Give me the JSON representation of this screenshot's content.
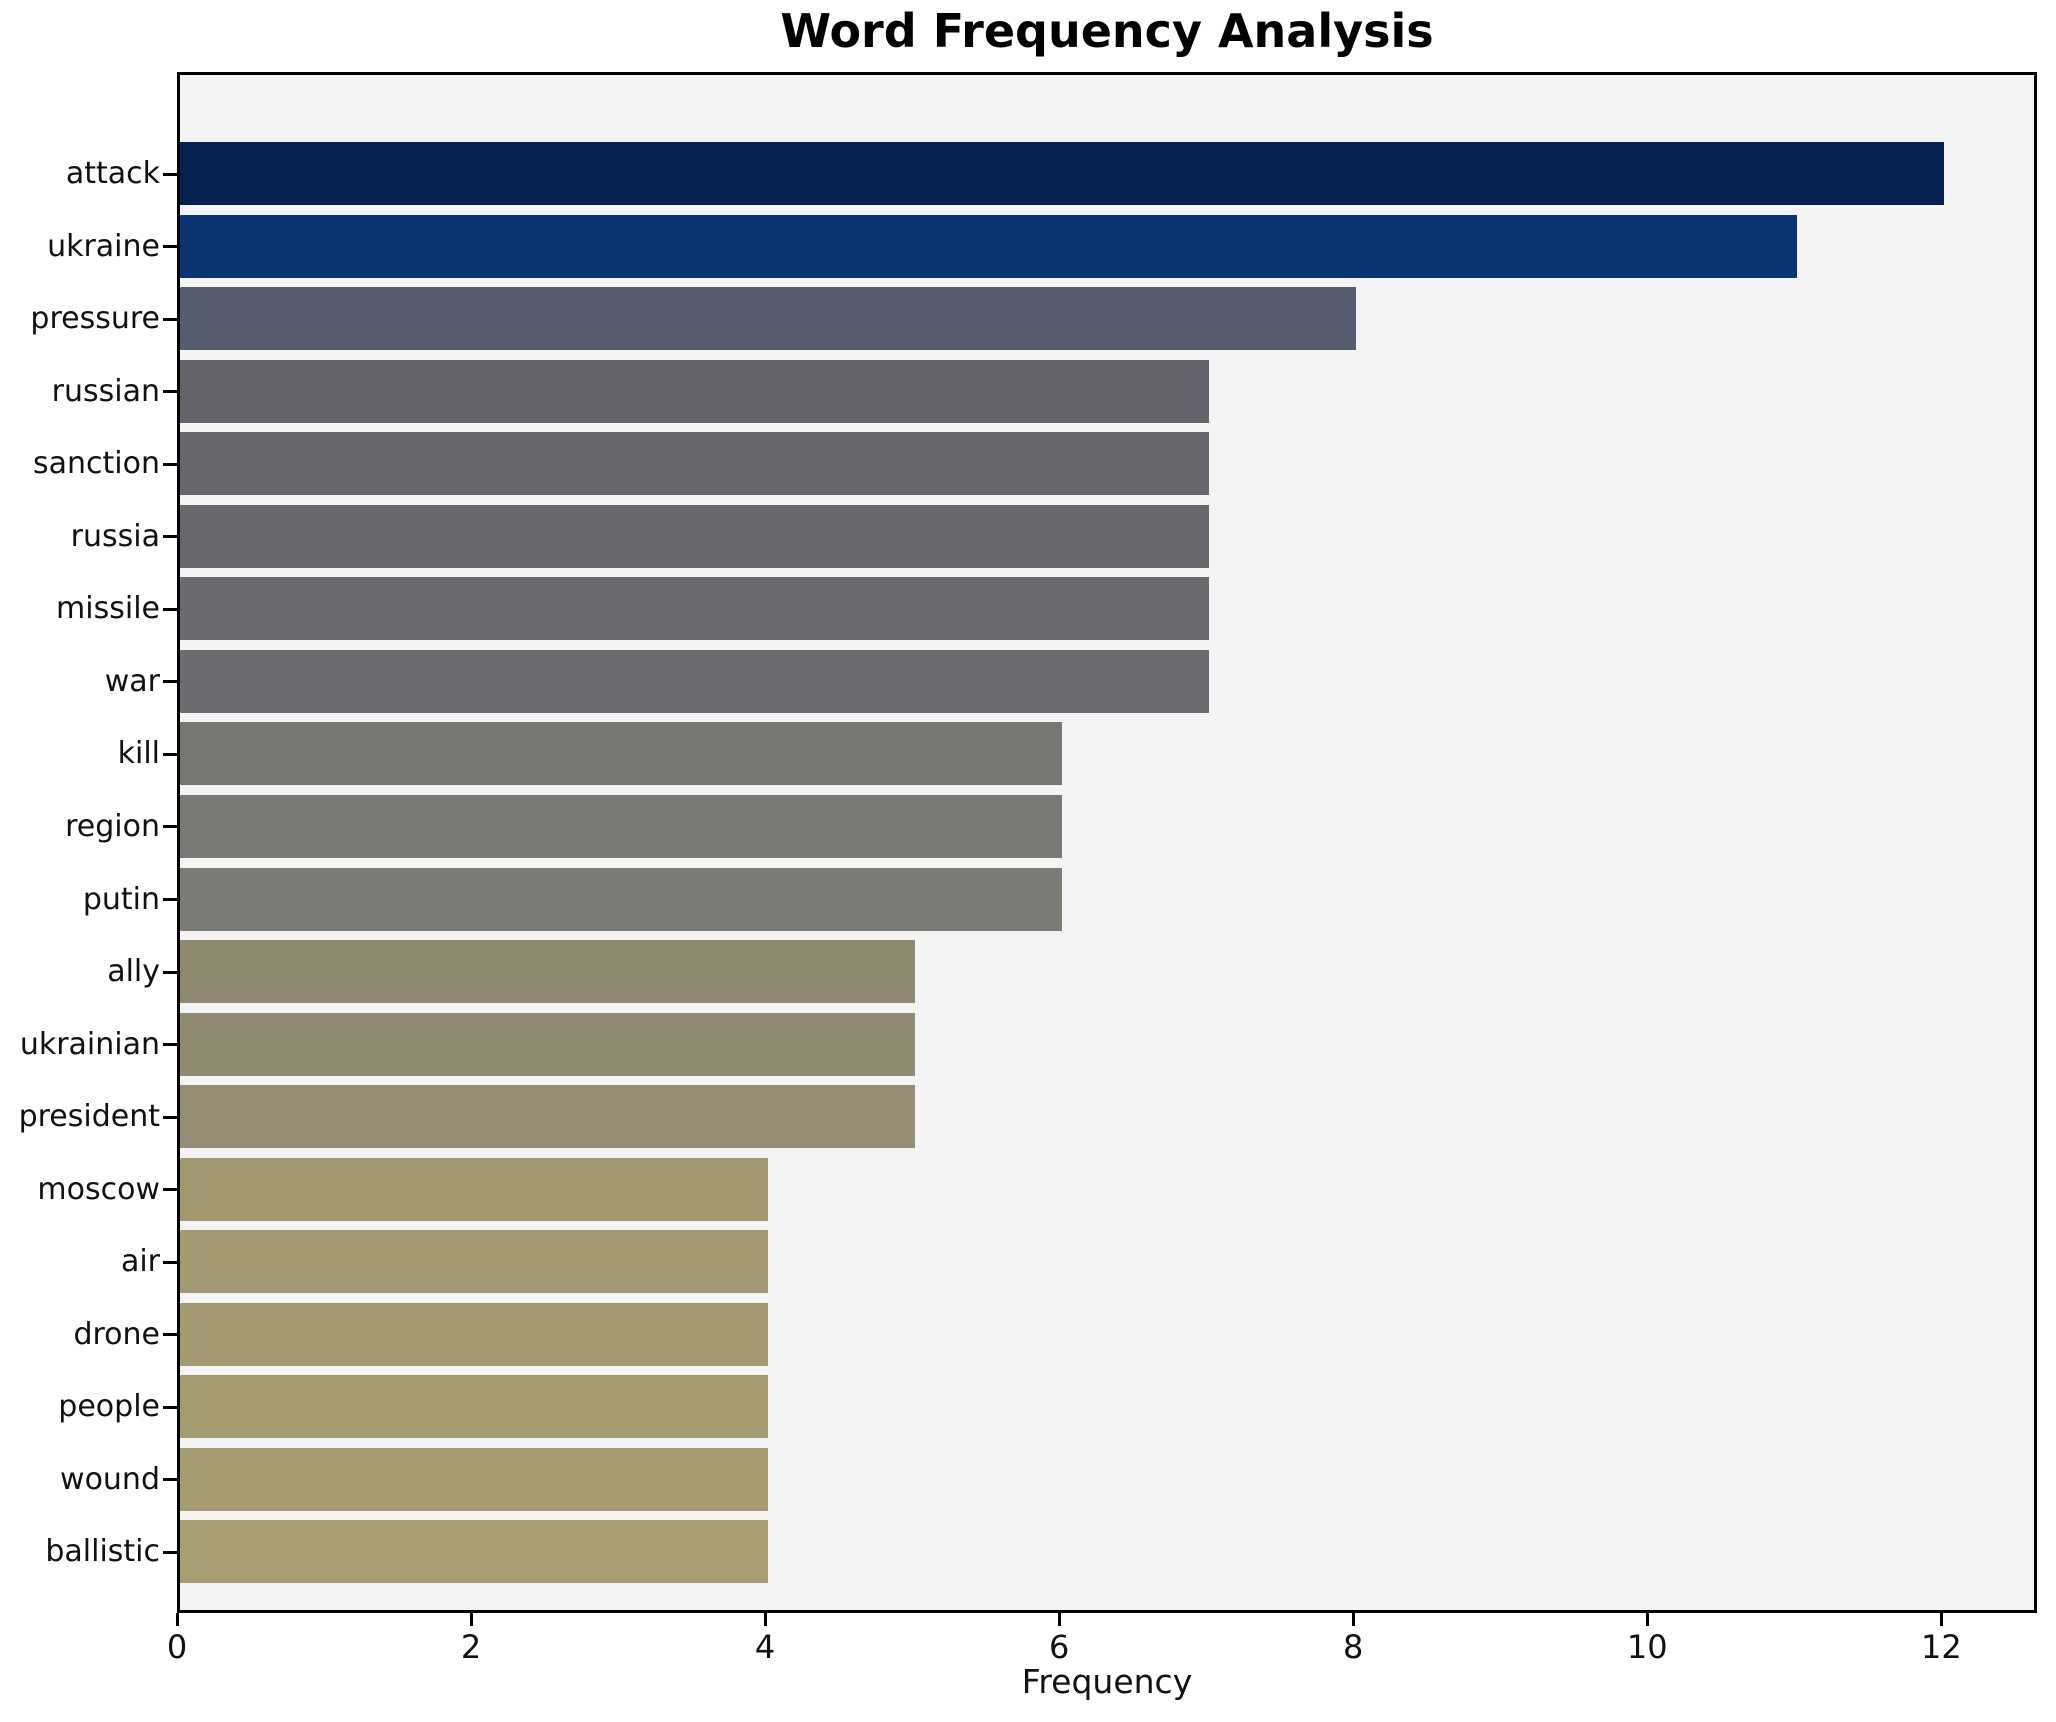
{
  "chart_data": {
    "type": "bar",
    "orientation": "horizontal",
    "title": "Word Frequency Analysis",
    "xlabel": "Frequency",
    "ylabel": "",
    "grid": false,
    "legend": null,
    "xlim": [
      0,
      12.61
    ],
    "xticks": [
      0,
      2,
      4,
      6,
      8,
      10,
      12
    ],
    "categories": [
      "attack",
      "ukraine",
      "pressure",
      "russian",
      "sanction",
      "russia",
      "missile",
      "war",
      "kill",
      "region",
      "putin",
      "ally",
      "ukrainian",
      "president",
      "moscow",
      "air",
      "drone",
      "people",
      "wound",
      "ballistic"
    ],
    "values": [
      12,
      11,
      8,
      7,
      7,
      7,
      7,
      7,
      6,
      6,
      6,
      5,
      5,
      5,
      4,
      4,
      4,
      4,
      4,
      4
    ],
    "bar_colors": [
      "#052150",
      "#0a3572",
      "#565d6e",
      "#63646b",
      "#66676d",
      "#68696e",
      "#6a6b6f",
      "#6c6d70",
      "#777673",
      "#7a7975",
      "#7d7b76",
      "#8f8871",
      "#928b74",
      "#958d76",
      "#a2986f",
      "#a39970",
      "#a49a71",
      "#a59b71",
      "#a69c72",
      "#a79d73"
    ],
    "colors": {
      "figure_background": "#ffffff",
      "plot_background": "#f5f4f4",
      "spine": "#000000",
      "title_text": "#000000",
      "tick_text": "#111111"
    }
  }
}
